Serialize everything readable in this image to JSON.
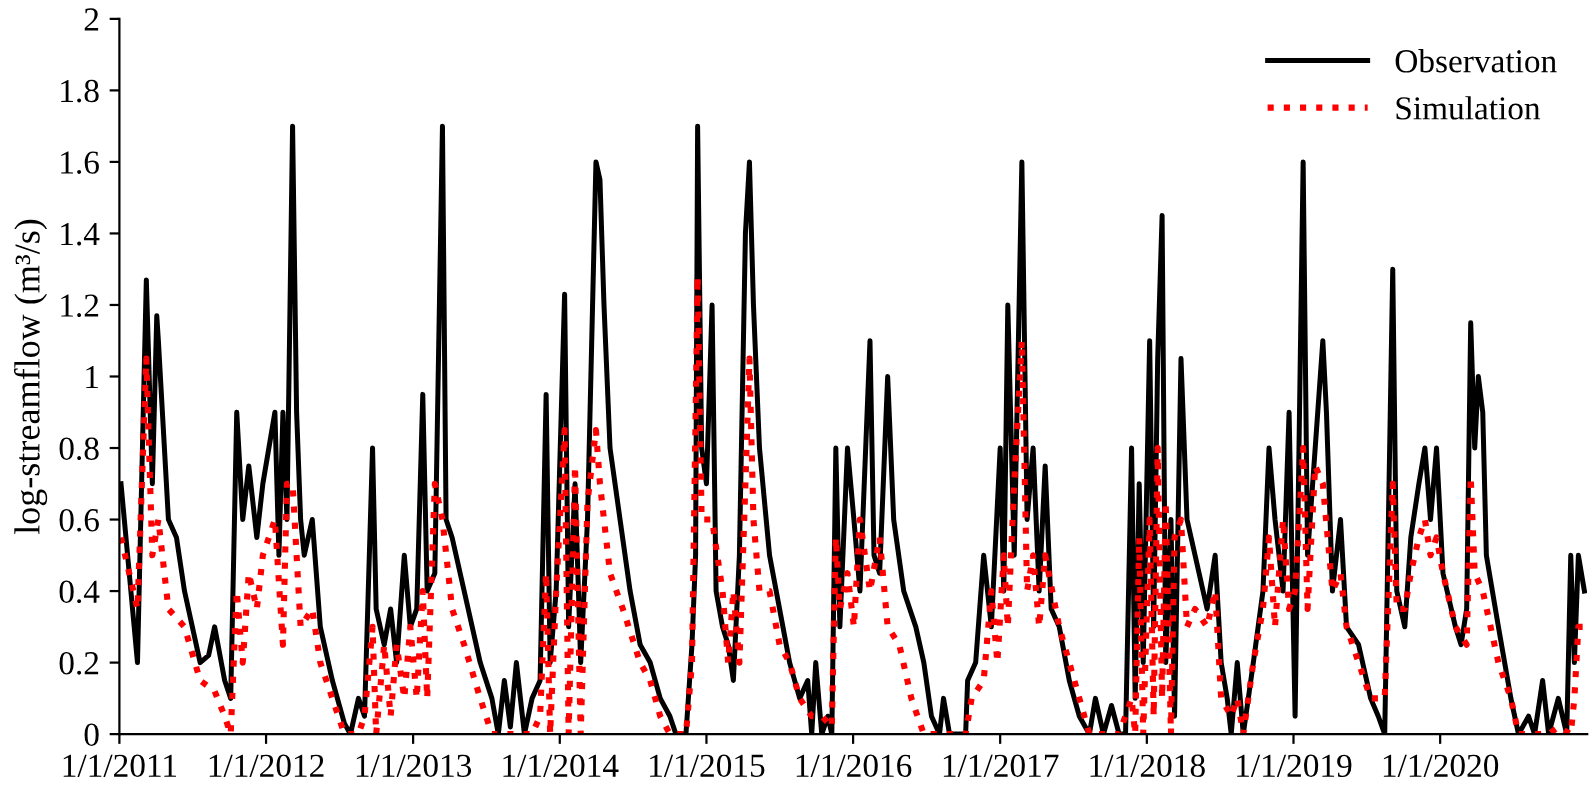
{
  "chart_data": {
    "type": "line",
    "ylabel": "log-streamflow (m³/s)",
    "legend": "top right",
    "grid": false,
    "marker": "none",
    "xlim": [
      "2011-01-01",
      "2021-01-01"
    ],
    "xticks": [
      {
        "value": "2011-01-01",
        "label": "1/1/2011"
      },
      {
        "value": "2012-01-01",
        "label": "1/1/2012"
      },
      {
        "value": "2013-01-01",
        "label": "1/1/2013"
      },
      {
        "value": "2014-01-01",
        "label": "1/1/2014"
      },
      {
        "value": "2015-01-01",
        "label": "1/1/2015"
      },
      {
        "value": "2016-01-01",
        "label": "1/1/2016"
      },
      {
        "value": "2017-01-01",
        "label": "1/1/2017"
      },
      {
        "value": "2018-01-01",
        "label": "1/1/2018"
      },
      {
        "value": "2019-01-01",
        "label": "1/1/2019"
      },
      {
        "value": "2020-01-01",
        "label": "1/1/2020"
      }
    ],
    "ylim": [
      0,
      2
    ],
    "yticks": [
      0,
      0.2,
      0.4,
      0.6,
      0.8,
      1,
      1.2,
      1.4,
      1.6,
      1.8,
      2
    ],
    "series": [
      {
        "name": "Observation",
        "color": "#000000",
        "line_style": "solid",
        "x": [
          "2011-01-05",
          "2011-02-15",
          "2011-03-09",
          "2011-03-24",
          "2011-04-04",
          "2011-04-08",
          "2011-05-03",
          "2011-05-23",
          "2011-06-12",
          "2011-07-21",
          "2011-08-11",
          "2011-08-26",
          "2011-09-20",
          "2011-10-05",
          "2011-10-20",
          "2011-11-04",
          "2011-11-19",
          "2011-12-09",
          "2011-12-24",
          "2012-01-08",
          "2012-01-23",
          "2012-02-02",
          "2012-02-12",
          "2012-02-22",
          "2012-03-07",
          "2012-03-17",
          "2012-03-27",
          "2012-04-05",
          "2012-04-25",
          "2012-05-15",
          "2012-06-14",
          "2012-07-14",
          "2012-07-29",
          "2012-08-18",
          "2012-09-02",
          "2012-09-22",
          "2012-10-01",
          "2012-10-21",
          "2012-11-06",
          "2012-11-21",
          "2012-12-10",
          "2012-12-25",
          "2013-01-10",
          "2013-01-25",
          "2013-02-05",
          "2013-02-24",
          "2013-03-15",
          "2013-03-24",
          "2013-04-08",
          "2013-05-08",
          "2013-06-17",
          "2013-07-16",
          "2013-08-01",
          "2013-08-16",
          "2013-08-31",
          "2013-09-15",
          "2013-10-05",
          "2013-10-24",
          "2013-11-13",
          "2013-11-28",
          "2013-12-08",
          "2013-12-23",
          "2014-01-13",
          "2014-01-23",
          "2014-02-08",
          "2014-02-22",
          "2014-03-11",
          "2014-04-01",
          "2014-04-11",
          "2014-04-21",
          "2014-05-06",
          "2014-05-31",
          "2014-06-25",
          "2014-07-20",
          "2014-08-14",
          "2014-09-08",
          "2014-10-02",
          "2014-10-17",
          "2014-11-11",
          "2014-11-26",
          "2014-12-05",
          "2014-12-10",
          "2014-12-20",
          "2015-01-01",
          "2015-01-15",
          "2015-01-25",
          "2015-02-10",
          "2015-02-24",
          "2015-03-09",
          "2015-03-24",
          "2015-04-08",
          "2015-04-18",
          "2015-04-28",
          "2015-05-13",
          "2015-06-07",
          "2015-07-02",
          "2015-07-27",
          "2015-08-21",
          "2015-09-10",
          "2015-09-20",
          "2015-09-30",
          "2015-10-15",
          "2015-10-30",
          "2015-11-09",
          "2015-11-19",
          "2015-11-29",
          "2015-12-18",
          "2016-01-03",
          "2016-01-18",
          "2016-02-12",
          "2016-02-22",
          "2016-03-07",
          "2016-03-27",
          "2016-04-11",
          "2016-05-06",
          "2016-06-05",
          "2016-06-25",
          "2016-07-14",
          "2016-08-03",
          "2016-08-13",
          "2016-08-28",
          "2016-10-07",
          "2016-10-12",
          "2016-11-01",
          "2016-11-21",
          "2016-12-10",
          "2017-01-01",
          "2017-01-10",
          "2017-01-20",
          "2017-02-05",
          "2017-02-24",
          "2017-03-09",
          "2017-03-24",
          "2017-04-08",
          "2017-04-23",
          "2017-05-08",
          "2017-05-28",
          "2017-06-22",
          "2017-07-17",
          "2017-08-11",
          "2017-08-26",
          "2017-09-15",
          "2017-10-05",
          "2017-10-24",
          "2017-11-09",
          "2017-11-24",
          "2017-12-03",
          "2017-12-13",
          "2017-12-23",
          "2018-01-08",
          "2018-01-18",
          "2018-01-28",
          "2018-02-08",
          "2018-02-17",
          "2018-03-02",
          "2018-03-11",
          "2018-03-27",
          "2018-04-11",
          "2018-05-01",
          "2018-05-31",
          "2018-06-20",
          "2018-07-05",
          "2018-07-20",
          "2018-07-30",
          "2018-08-14",
          "2018-08-29",
          "2018-09-23",
          "2018-10-17",
          "2018-11-01",
          "2018-11-16",
          "2018-12-06",
          "2018-12-21",
          "2019-01-05",
          "2019-01-25",
          "2019-02-05",
          "2019-02-24",
          "2019-03-15",
          "2019-03-24",
          "2019-04-08",
          "2019-04-28",
          "2019-05-13",
          "2019-06-12",
          "2019-07-12",
          "2019-07-31",
          "2019-08-16",
          "2019-09-05",
          "2019-09-15",
          "2019-10-05",
          "2019-10-20",
          "2019-11-09",
          "2019-11-24",
          "2019-12-08",
          "2019-12-23",
          "2020-01-08",
          "2020-02-08",
          "2020-02-22",
          "2020-03-07",
          "2020-03-17",
          "2020-03-27",
          "2020-04-05",
          "2020-04-16",
          "2020-04-25",
          "2020-05-25",
          "2020-06-25",
          "2020-07-14",
          "2020-08-08",
          "2020-08-23",
          "2020-09-12",
          "2020-09-27",
          "2020-10-21",
          "2020-11-11",
          "2020-11-21",
          "2020-11-30",
          "2020-12-10",
          "2020-12-25"
        ],
        "values": [
          0.7,
          0.2,
          1.27,
          0.7,
          1.17,
          1.1,
          0.6,
          0.55,
          0.4,
          0.2,
          0.22,
          0.3,
          0.15,
          0.1,
          0.9,
          0.6,
          0.75,
          0.55,
          0.7,
          0.8,
          0.9,
          0.5,
          0.9,
          0.6,
          1.7,
          0.9,
          0.6,
          0.5,
          0.6,
          0.3,
          0.15,
          0.03,
          0,
          0.1,
          0.05,
          0.8,
          0.35,
          0.25,
          0.35,
          0.2,
          0.5,
          0.3,
          0.35,
          0.95,
          0.4,
          0.45,
          1.7,
          0.6,
          0.55,
          0.4,
          0.2,
          0.1,
          0,
          0.15,
          0.02,
          0.2,
          0,
          0.1,
          0.15,
          0.95,
          0.2,
          0.4,
          1.23,
          0.3,
          0.7,
          0.2,
          0.6,
          1.6,
          1.55,
          1.2,
          0.8,
          0.6,
          0.4,
          0.25,
          0.2,
          0.1,
          0.05,
          0,
          0,
          0.25,
          0.5,
          1.7,
          0.8,
          0.7,
          1.2,
          0.4,
          0.3,
          0.25,
          0.15,
          0.5,
          1.4,
          1.6,
          1.2,
          0.8,
          0.5,
          0.35,
          0.2,
          0.1,
          0.15,
          0,
          0.2,
          0,
          0.05,
          0,
          0.8,
          0.3,
          0.8,
          0.6,
          0.4,
          1.1,
          0.5,
          0.45,
          1.0,
          0.6,
          0.4,
          0.3,
          0.2,
          0.05,
          0,
          0.1,
          0,
          0,
          0.15,
          0.2,
          0.5,
          0.3,
          0.8,
          0.4,
          1.2,
          0.5,
          1.6,
          0.6,
          0.8,
          0.4,
          0.75,
          0.35,
          0.3,
          0.15,
          0.05,
          0,
          0.1,
          0,
          0.08,
          0,
          0,
          0.8,
          0.1,
          0.7,
          0.2,
          1.1,
          0.3,
          1.05,
          1.45,
          0.2,
          0.6,
          0.05,
          1.05,
          0.6,
          0.5,
          0.35,
          0.5,
          0.2,
          0.1,
          0,
          0.2,
          0,
          0.2,
          0.4,
          0.8,
          0.6,
          0.4,
          0.9,
          0.05,
          1.6,
          0.5,
          0.8,
          1.1,
          0.9,
          0.4,
          0.6,
          0.3,
          0.25,
          0.1,
          0.05,
          0,
          1.3,
          0.4,
          0.3,
          0.55,
          0.7,
          0.8,
          0.6,
          0.8,
          0.45,
          0.3,
          0.25,
          0.35,
          1.15,
          0.8,
          1.0,
          0.9,
          0.5,
          0.3,
          0.1,
          0,
          0.05,
          0,
          0.15,
          0,
          0.1,
          0,
          0.5,
          0.2,
          0.5,
          0.4
        ]
      },
      {
        "name": "Simulation",
        "color": "#ff0000",
        "line_style": "dotted",
        "x": [
          "2011-01-05",
          "2011-02-15",
          "2011-03-09",
          "2011-03-24",
          "2011-04-08",
          "2011-05-03",
          "2011-06-12",
          "2011-07-21",
          "2011-08-26",
          "2011-09-20",
          "2011-10-05",
          "2011-10-20",
          "2011-11-04",
          "2011-11-19",
          "2011-12-09",
          "2011-12-24",
          "2012-01-23",
          "2012-02-12",
          "2012-02-22",
          "2012-03-07",
          "2012-03-27",
          "2012-04-25",
          "2012-05-15",
          "2012-06-14",
          "2012-07-14",
          "2012-08-18",
          "2012-09-02",
          "2012-09-22",
          "2012-10-01",
          "2012-10-21",
          "2012-11-06",
          "2012-11-21",
          "2012-12-10",
          "2012-12-25",
          "2013-01-10",
          "2013-01-25",
          "2013-02-05",
          "2013-02-24",
          "2013-03-15",
          "2013-04-08",
          "2013-05-08",
          "2013-06-17",
          "2013-07-16",
          "2013-08-16",
          "2013-09-15",
          "2013-10-24",
          "2013-11-13",
          "2013-11-28",
          "2013-12-08",
          "2013-12-23",
          "2014-01-13",
          "2014-01-23",
          "2014-02-08",
          "2014-02-22",
          "2014-03-11",
          "2014-04-01",
          "2014-04-11",
          "2014-05-06",
          "2014-06-07",
          "2014-07-20",
          "2014-08-14",
          "2014-09-08",
          "2014-10-02",
          "2014-11-11",
          "2014-11-26",
          "2014-12-10",
          "2014-12-20",
          "2015-01-15",
          "2015-02-10",
          "2015-02-24",
          "2015-03-09",
          "2015-03-24",
          "2015-04-08",
          "2015-04-18",
          "2015-04-28",
          "2015-05-13",
          "2015-06-07",
          "2015-07-02",
          "2015-07-27",
          "2015-08-21",
          "2015-09-20",
          "2015-10-15",
          "2015-11-09",
          "2015-11-19",
          "2015-11-29",
          "2015-12-18",
          "2016-01-03",
          "2016-01-18",
          "2016-02-12",
          "2016-03-07",
          "2016-03-27",
          "2016-04-25",
          "2016-05-25",
          "2016-06-25",
          "2016-07-14",
          "2016-08-28",
          "2016-10-07",
          "2016-10-22",
          "2016-11-21",
          "2016-12-10",
          "2016-12-25",
          "2017-01-10",
          "2017-01-20",
          "2017-02-05",
          "2017-02-24",
          "2017-03-09",
          "2017-03-24",
          "2017-04-08",
          "2017-04-23",
          "2017-05-28",
          "2017-06-22",
          "2017-07-17",
          "2017-08-11",
          "2017-09-15",
          "2017-10-24",
          "2017-11-24",
          "2017-12-03",
          "2017-12-13",
          "2017-12-23",
          "2018-01-08",
          "2018-01-18",
          "2018-01-28",
          "2018-02-08",
          "2018-02-17",
          "2018-03-02",
          "2018-03-11",
          "2018-03-27",
          "2018-04-11",
          "2018-05-01",
          "2018-05-31",
          "2018-06-20",
          "2018-07-05",
          "2018-07-30",
          "2018-08-14",
          "2018-08-29",
          "2018-09-23",
          "2018-10-17",
          "2018-11-01",
          "2018-11-16",
          "2018-12-06",
          "2018-12-21",
          "2019-01-05",
          "2019-01-25",
          "2019-02-05",
          "2019-02-24",
          "2019-03-15",
          "2019-04-08",
          "2019-04-28",
          "2019-05-13",
          "2019-06-12",
          "2019-07-12",
          "2019-08-16",
          "2019-09-05",
          "2019-09-15",
          "2019-10-05",
          "2019-10-20",
          "2019-11-09",
          "2019-11-24",
          "2019-12-08",
          "2019-12-23",
          "2020-01-08",
          "2020-02-08",
          "2020-03-07",
          "2020-03-17",
          "2020-03-27",
          "2020-04-16",
          "2020-05-25",
          "2020-06-25",
          "2020-07-14",
          "2020-08-23",
          "2020-09-27",
          "2020-10-21",
          "2020-11-21",
          "2020-11-30",
          "2020-12-10",
          "2020-12-25"
        ],
        "values": [
          0.55,
          0.35,
          1.05,
          0.5,
          0.6,
          0.35,
          0.3,
          0.15,
          0.12,
          0.05,
          0,
          0.4,
          0.2,
          0.45,
          0.35,
          0.5,
          0.6,
          0.25,
          0.7,
          0.7,
          0.3,
          0.35,
          0.2,
          0.1,
          0,
          0,
          0.05,
          0.3,
          0,
          0.25,
          0.05,
          0.25,
          0.1,
          0.3,
          0.1,
          0.4,
          0.1,
          0.7,
          0.6,
          0.35,
          0.25,
          0.1,
          0,
          0,
          0,
          0,
          0.05,
          0.45,
          0,
          0.4,
          0.85,
          0,
          0.75,
          0,
          0.65,
          0.85,
          0.7,
          0.45,
          0.35,
          0.2,
          0.15,
          0.05,
          0,
          0,
          0.2,
          1.28,
          0.6,
          0.6,
          0.4,
          0.2,
          0.4,
          0.2,
          0.7,
          1.05,
          0.6,
          0.4,
          0.4,
          0.25,
          0.2,
          0.1,
          0.05,
          0.05,
          0.02,
          0.55,
          0.35,
          0.45,
          0.3,
          0.6,
          0.4,
          0.55,
          0.3,
          0.25,
          0.1,
          0,
          0,
          0,
          0,
          0.1,
          0.15,
          0.4,
          0.2,
          0.5,
          0.3,
          0.7,
          1.1,
          0.4,
          0.5,
          0.3,
          0.5,
          0.3,
          0.2,
          0.1,
          0,
          0,
          0,
          0.1,
          0,
          0.55,
          0,
          0.6,
          0.05,
          0.8,
          0.1,
          0.65,
          0,
          0.55,
          0.6,
          0.3,
          0.35,
          0.3,
          0.4,
          0.1,
          0.05,
          0.1,
          0,
          0.2,
          0.35,
          0.55,
          0.3,
          0.6,
          0.35,
          0.4,
          0.8,
          0.35,
          0.75,
          0.7,
          0.4,
          0.45,
          0.3,
          0.2,
          0.1,
          0.1,
          0.7,
          0.35,
          0.35,
          0.45,
          0.55,
          0.6,
          0.5,
          0.55,
          0.45,
          0.3,
          0.25,
          0.72,
          0.45,
          0.4,
          0.2,
          0.1,
          0,
          0,
          0,
          0.02,
          0,
          0.1,
          0.3,
          0.3
        ]
      }
    ]
  }
}
